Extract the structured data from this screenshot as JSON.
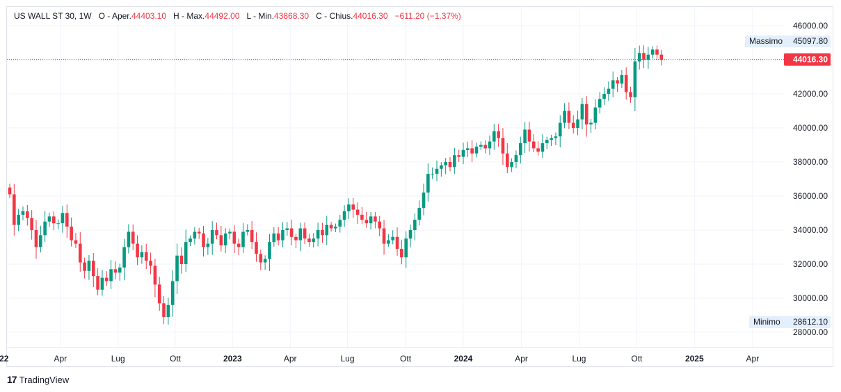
{
  "legend": {
    "symbol": "US WALL ST 30, 1W",
    "open_label": "O - Aper.",
    "open_value": "44403.10",
    "high_label": "H - Max.",
    "high_value": "44492.00",
    "low_label": "L - Min.",
    "low_value": "43868.30",
    "close_label": "C - Chius.",
    "close_value": "44016.30",
    "change": "−611.20 (−1.37%)"
  },
  "markers": {
    "max_label": "Massimo",
    "max_value": "45097.80",
    "min_label": "Minimo",
    "min_value": "28612.10",
    "last_price": "44016.30"
  },
  "branding": {
    "text": "TradingView",
    "logo": "17"
  },
  "colors": {
    "up": "#089981",
    "down": "#f23645",
    "grid": "#f0f3fa",
    "marker_bg": "#e3effd"
  },
  "chart_data": {
    "type": "candlestick",
    "interval": "1W",
    "ylim": [
      27600,
      46800
    ],
    "yticks": [
      "46000.00",
      "44000.00",
      "42000.00",
      "40000.00",
      "38000.00",
      "36000.00",
      "34000.00",
      "32000.00",
      "30000.00",
      "28000.00"
    ],
    "yticks_values": [
      46000,
      44000,
      42000,
      40000,
      38000,
      36000,
      34000,
      32000,
      30000,
      28000
    ],
    "xticks": [
      {
        "label": "22",
        "week": -1.3,
        "bold": true
      },
      {
        "label": "Apr",
        "week": 11.5,
        "bold": false
      },
      {
        "label": "Lug",
        "week": 24.6,
        "bold": false
      },
      {
        "label": "Ott",
        "week": 37.6,
        "bold": false
      },
      {
        "label": "2023",
        "week": 50.6,
        "bold": true
      },
      {
        "label": "Apr",
        "week": 63.7,
        "bold": false
      },
      {
        "label": "Lug",
        "week": 76.7,
        "bold": false
      },
      {
        "label": "Ott",
        "week": 89.9,
        "bold": false
      },
      {
        "label": "2024",
        "week": 103.0,
        "bold": true
      },
      {
        "label": "Apr",
        "week": 116.2,
        "bold": false
      },
      {
        "label": "Lug",
        "week": 129.3,
        "bold": false
      },
      {
        "label": "Ott",
        "week": 142.4,
        "bold": false
      },
      {
        "label": "2025",
        "week": 155.5,
        "bold": true
      },
      {
        "label": "Apr",
        "week": 168.7,
        "bold": false
      }
    ],
    "last_price": 44016.3,
    "max": 45097.8,
    "min": 28612.1,
    "closes": [
      36100,
      34300,
      34900,
      35100,
      34700,
      34000,
      33000,
      33700,
      34500,
      34800,
      34400,
      34400,
      35000,
      34200,
      33400,
      33200,
      32100,
      31600,
      32200,
      31300,
      30500,
      31200,
      31000,
      31700,
      31500,
      31800,
      33000,
      33900,
      33200,
      32400,
      32700,
      32200,
      31900,
      30800,
      29700,
      28900,
      29600,
      31000,
      32500,
      32000,
      33300,
      33500,
      33900,
      33800,
      33000,
      33200,
      34000,
      33700,
      33100,
      33800,
      33900,
      33200,
      33000,
      33900,
      34000,
      33300,
      32600,
      32100,
      32300,
      33300,
      33800,
      33400,
      34000,
      34100,
      33600,
      33400,
      34100,
      33500,
      33300,
      33500,
      34000,
      33700,
      34300,
      34100,
      34200,
      34600,
      35100,
      35500,
      35200,
      34900,
      34600,
      34400,
      34800,
      34500,
      34100,
      33200,
      33400,
      33600,
      32900,
      32400,
      33500,
      34000,
      34600,
      35300,
      36200,
      37300,
      37300,
      37600,
      37800,
      38000,
      37700,
      38400,
      38300,
      38700,
      38800,
      38500,
      38900,
      39000,
      38800,
      39200,
      39800,
      39400,
      38500,
      37700,
      38000,
      38400,
      39100,
      39900,
      39200,
      38800,
      38600,
      39100,
      39300,
      39400,
      39500,
      40300,
      41000,
      40300,
      40000,
      40500,
      41400,
      40200,
      40300,
      41200,
      41700,
      42000,
      42300,
      42800,
      42600,
      43100,
      42100,
      41800,
      43900,
      44400,
      44000,
      44300,
      44600,
      44300,
      44000
    ],
    "opens_note": "open equals previous close"
  }
}
